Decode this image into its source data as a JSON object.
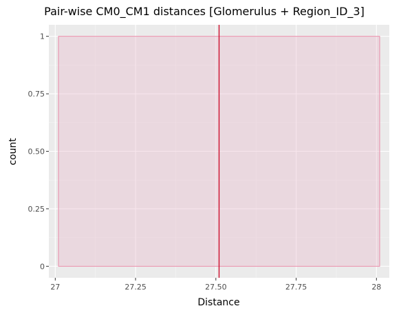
{
  "chart_data": {
    "type": "bar",
    "title": "Pair-wise CM0_CM1 distances [Glomerulus + Region_ID_3]",
    "xlabel": "Distance",
    "ylabel": "count",
    "xlim": [
      26.98,
      28.04
    ],
    "ylim": [
      -0.05,
      1.05
    ],
    "x_ticks": [
      27,
      27.25,
      27.5,
      27.75,
      28
    ],
    "x_tick_labels": [
      "27",
      "27.25",
      "27.50",
      "27.75",
      "28"
    ],
    "y_ticks": [
      0,
      0.25,
      0.5,
      0.75,
      1
    ],
    "y_tick_labels": [
      "0",
      "0.25",
      "0.50",
      "0.75",
      "1"
    ],
    "bins": [
      {
        "x_start": 27.01,
        "x_end": 28.01,
        "count": 1
      }
    ],
    "vline": {
      "x": 27.51,
      "color": "#cc0022"
    },
    "bar_fill": "#e8b4c8",
    "bar_stroke": "#e88aa8",
    "panel_background": "#ebebeb",
    "grid": true
  }
}
